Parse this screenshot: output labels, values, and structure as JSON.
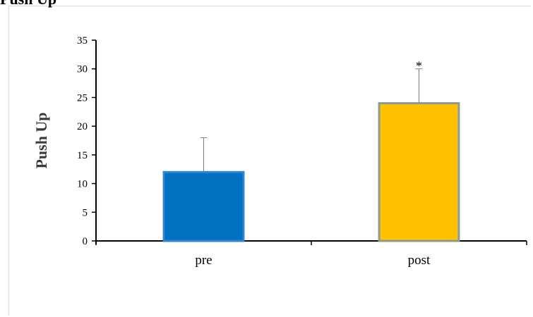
{
  "header": {
    "title": "Push Up"
  },
  "chart_data": {
    "type": "bar",
    "title": "Push Up",
    "ylabel": "Push Up",
    "xlabel": "",
    "categories": [
      "pre",
      "post"
    ],
    "values": [
      12,
      24
    ],
    "error_upper": [
      18,
      30
    ],
    "ylim": [
      0,
      35
    ],
    "yticks": [
      0,
      5,
      10,
      15,
      20,
      25,
      30,
      35
    ],
    "colors": [
      "#0070c0",
      "#ffc000"
    ],
    "bar_borders": [
      "#2e86d1",
      "#8b9a93"
    ],
    "annotations": [
      "",
      "*"
    ],
    "grid": false,
    "legend": false
  }
}
